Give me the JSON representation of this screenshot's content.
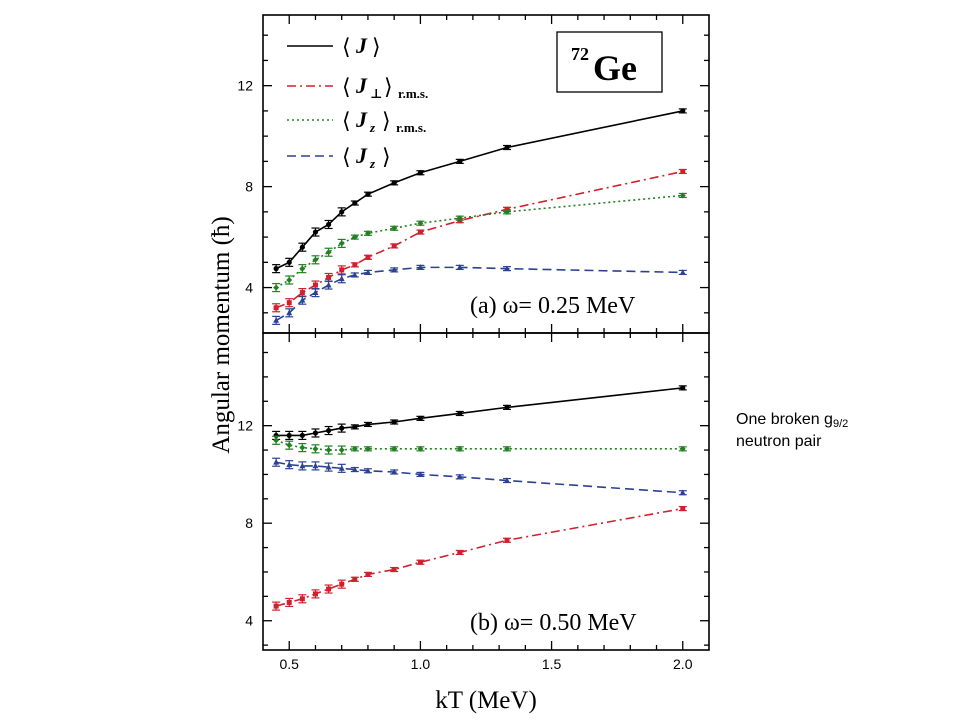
{
  "nucleus": {
    "mass": "72",
    "symbol": "Ge"
  },
  "annotation": {
    "line1_prefix": "One broken g",
    "line1_sub": "9/2",
    "line2": "neutron pair"
  },
  "legend": [
    {
      "sym": "J",
      "perp": false,
      "sub": ""
    },
    {
      "sym": "J",
      "perp": true,
      "sub": "r.m.s."
    },
    {
      "sym": "J",
      "perp": false,
      "z": true,
      "sub": "r.m.s."
    },
    {
      "sym": "J",
      "perp": false,
      "z": true,
      "sub": ""
    }
  ],
  "colors": {
    "J": "#000000",
    "Jperp": "#d0202e",
    "Jz_rms": "#238023",
    "Jz": "#2b4291",
    "axes": "#000000"
  },
  "chart_data": {
    "type": "line",
    "xlabel": "kT (MeV)",
    "ylabel": "Angular momentum (ħ)",
    "xlim": [
      0.4,
      2.1
    ],
    "x_ticks": [
      "0.5",
      "1.0",
      "1.5",
      "2.0"
    ],
    "y_ticks": [
      "4",
      "8",
      "12"
    ],
    "x": [
      0.45,
      0.5,
      0.55,
      0.6,
      0.65,
      0.7,
      0.75,
      0.8,
      0.9,
      1.0,
      1.15,
      1.33,
      2.0
    ],
    "panels": [
      {
        "label_prefix": "(a) ω=",
        "label_value": "0.25 MeV",
        "ylim": [
          2.2,
          14.8
        ],
        "series": [
          {
            "key": "J",
            "style": "solid",
            "marker": "circle",
            "color": "#000000",
            "values": [
              4.75,
              5.0,
              5.6,
              6.2,
              6.5,
              7.0,
              7.35,
              7.7,
              8.15,
              8.55,
              9.0,
              9.55,
              11.0
            ]
          },
          {
            "key": "Jperp",
            "style": "dashdot",
            "marker": "square",
            "color": "#d0202e",
            "values": [
              3.2,
              3.4,
              3.8,
              4.1,
              4.4,
              4.7,
              4.9,
              5.2,
              5.65,
              6.2,
              6.65,
              7.1,
              8.6
            ]
          },
          {
            "key": "Jz_rms",
            "style": "dotted",
            "marker": "diamond",
            "color": "#238023",
            "values": [
              4.0,
              4.3,
              4.75,
              5.1,
              5.4,
              5.75,
              6.0,
              6.15,
              6.35,
              6.55,
              6.75,
              7.0,
              7.65
            ]
          },
          {
            "key": "Jz",
            "style": "dashed",
            "marker": "triangle",
            "color": "#2b4291",
            "values": [
              2.7,
              3.0,
              3.5,
              3.8,
              4.1,
              4.35,
              4.5,
              4.6,
              4.7,
              4.8,
              4.8,
              4.75,
              4.6
            ]
          }
        ]
      },
      {
        "label_prefix": "(b) ω=",
        "label_value": "0.50 MeV",
        "ylim": [
          2.8,
          15.8
        ],
        "series": [
          {
            "key": "J",
            "style": "solid",
            "marker": "circle",
            "color": "#000000",
            "values": [
              11.6,
              11.6,
              11.6,
              11.7,
              11.8,
              11.9,
              11.95,
              12.05,
              12.15,
              12.3,
              12.5,
              12.75,
              13.55
            ]
          },
          {
            "key": "Jz_rms",
            "style": "dotted",
            "marker": "diamond",
            "color": "#238023",
            "values": [
              11.4,
              11.2,
              11.1,
              11.05,
              11.0,
              11.0,
              11.05,
              11.05,
              11.05,
              11.05,
              11.05,
              11.05,
              11.05
            ]
          },
          {
            "key": "Jz",
            "style": "dashed",
            "marker": "triangle",
            "color": "#2b4291",
            "values": [
              10.5,
              10.4,
              10.35,
              10.35,
              10.3,
              10.25,
              10.2,
              10.15,
              10.1,
              10.0,
              9.9,
              9.75,
              9.25
            ]
          },
          {
            "key": "Jperp",
            "style": "dashdot",
            "marker": "square",
            "color": "#d0202e",
            "values": [
              4.6,
              4.75,
              4.9,
              5.1,
              5.3,
              5.5,
              5.7,
              5.9,
              6.1,
              6.4,
              6.8,
              7.3,
              8.6
            ]
          }
        ]
      }
    ]
  }
}
